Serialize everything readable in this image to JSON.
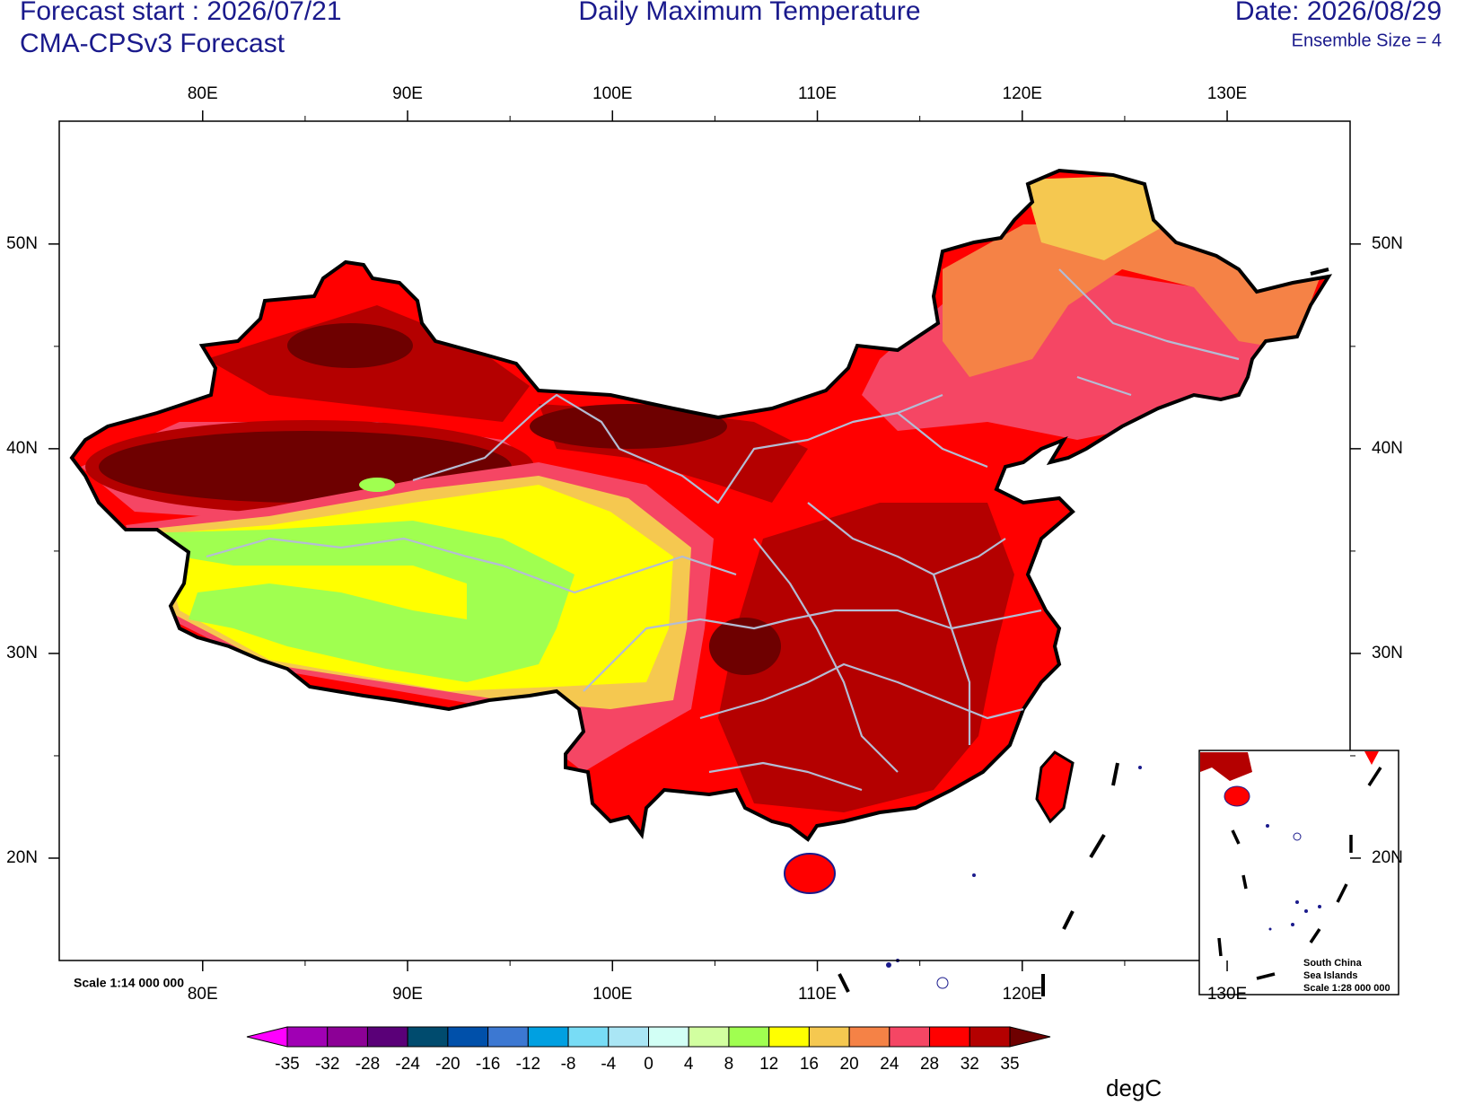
{
  "header": {
    "forecast_start": "Forecast start : 2026/07/21",
    "model": "CMA-CPSv3 Forecast",
    "title": "Daily Maximum Temperature",
    "date": "Date: 2026/08/29",
    "ensemble": "Ensemble Size = 4"
  },
  "map": {
    "xlim": [
      73,
      136
    ],
    "ylim": [
      15,
      56
    ],
    "xticks": [
      {
        "value": 80,
        "label": "80E"
      },
      {
        "value": 90,
        "label": "90E"
      },
      {
        "value": 100,
        "label": "100E"
      },
      {
        "value": 110,
        "label": "110E"
      },
      {
        "value": 120,
        "label": "120E"
      },
      {
        "value": 130,
        "label": "130E"
      }
    ],
    "yticks": [
      {
        "value": 20,
        "label": "20N"
      },
      {
        "value": 30,
        "label": "30N"
      },
      {
        "value": 40,
        "label": "40N"
      },
      {
        "value": 50,
        "label": "50N"
      }
    ],
    "scale": "Scale 1:14 000 000"
  },
  "inset": {
    "lines": [
      "South China",
      "Sea Islands",
      "Scale 1:28 000 000"
    ]
  },
  "colorbar": {
    "levels": [
      -35,
      -32,
      -28,
      -24,
      -20,
      -16,
      -12,
      -8,
      -4,
      0,
      4,
      8,
      12,
      16,
      20,
      24,
      28,
      32,
      35
    ],
    "colors": [
      "#ff00ff",
      "#a000b4",
      "#8c0096",
      "#5a0078",
      "#004b6e",
      "#0050aa",
      "#3c78d2",
      "#00a0e1",
      "#78dcf5",
      "#aae6f5",
      "#d2fff5",
      "#d2ffa0",
      "#a0ff50",
      "#ffff00",
      "#f5c850",
      "#f58246",
      "#f54664",
      "#ff0000",
      "#b40000",
      "#6e0000"
    ],
    "unit": "degC"
  }
}
